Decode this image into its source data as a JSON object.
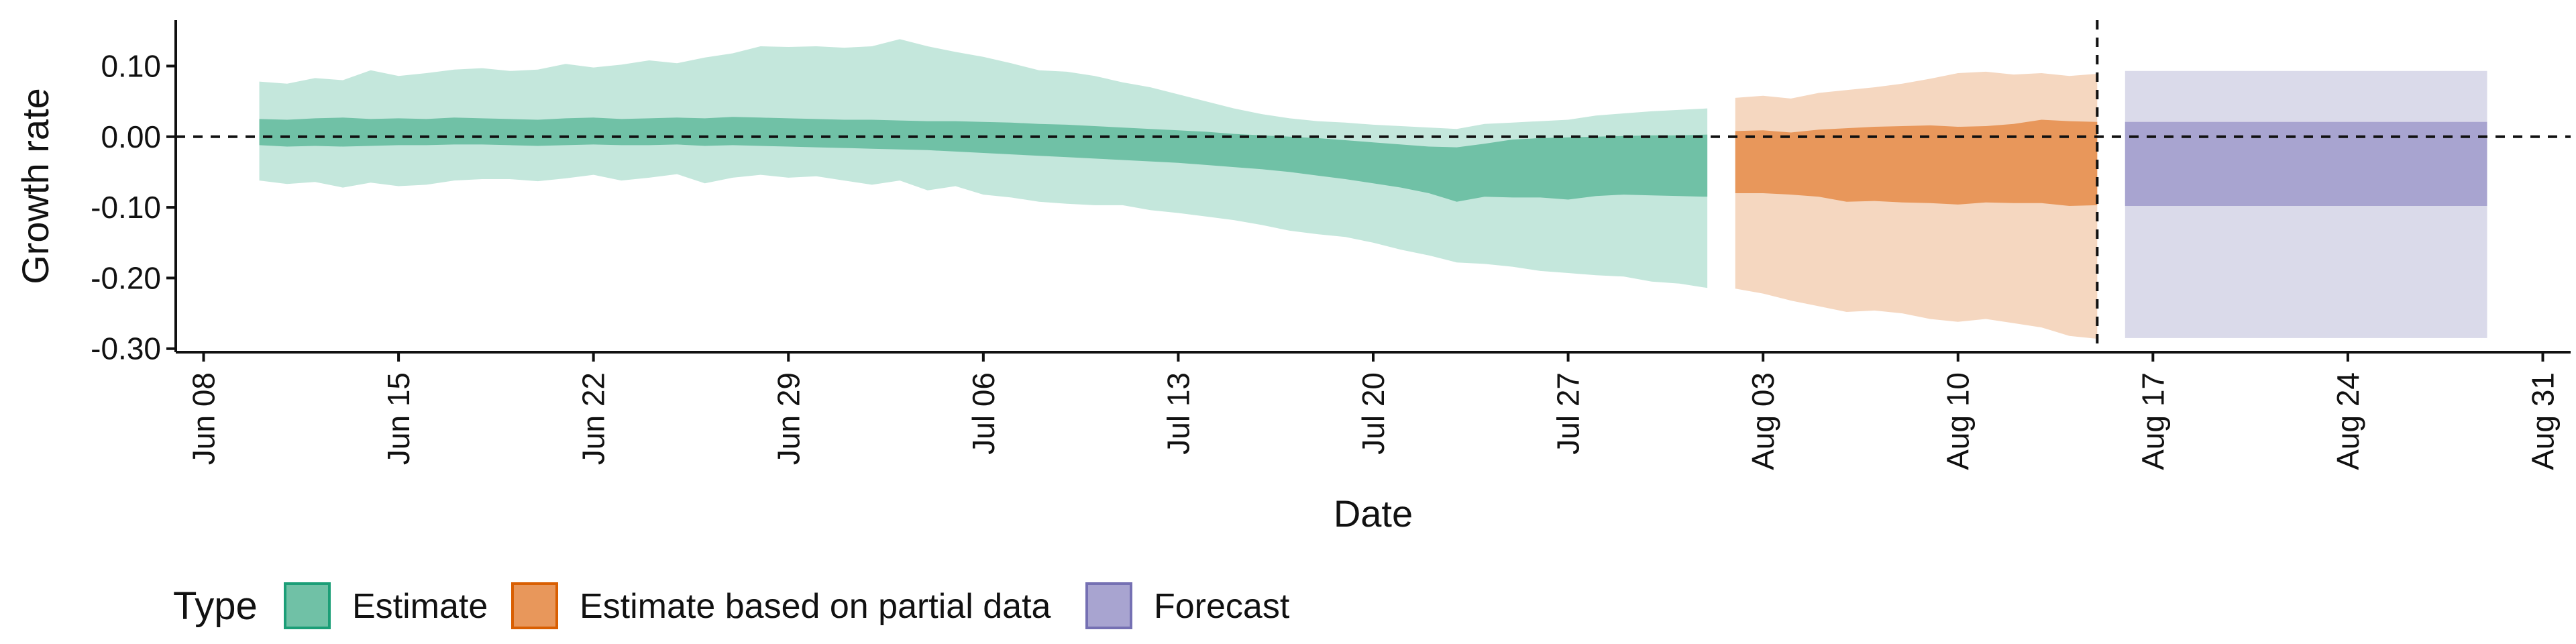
{
  "chart_data": {
    "type": "area",
    "xlabel": "Date",
    "ylabel": "Growth rate",
    "x_axis_type": "date",
    "xlim": [
      "2020-06-07",
      "2020-09-01"
    ],
    "ylim": [
      -0.305,
      0.165
    ],
    "x_ticks": [
      {
        "date": "2020-06-08",
        "label": "Jun 08"
      },
      {
        "date": "2020-06-15",
        "label": "Jun 15"
      },
      {
        "date": "2020-06-22",
        "label": "Jun 22"
      },
      {
        "date": "2020-06-29",
        "label": "Jun 29"
      },
      {
        "date": "2020-07-06",
        "label": "Jul 06"
      },
      {
        "date": "2020-07-13",
        "label": "Jul 13"
      },
      {
        "date": "2020-07-20",
        "label": "Jul 20"
      },
      {
        "date": "2020-07-27",
        "label": "Jul 27"
      },
      {
        "date": "2020-08-03",
        "label": "Aug 03"
      },
      {
        "date": "2020-08-10",
        "label": "Aug 10"
      },
      {
        "date": "2020-08-17",
        "label": "Aug 17"
      },
      {
        "date": "2020-08-24",
        "label": "Aug 24"
      },
      {
        "date": "2020-08-31",
        "label": "Aug 31"
      }
    ],
    "y_ticks": [
      {
        "value": 0.1,
        "label": "0.10"
      },
      {
        "value": 0.0,
        "label": "0.00"
      },
      {
        "value": -0.1,
        "label": "-0.10"
      },
      {
        "value": -0.2,
        "label": "-0.20"
      },
      {
        "value": -0.3,
        "label": "-0.30"
      }
    ],
    "reference_lines": {
      "horizontal_y": 0.0,
      "vertical_date": "2020-08-15",
      "style": "dashed"
    },
    "grid": false,
    "legend": {
      "title": "Type",
      "position": "bottom",
      "entries": [
        {
          "label": "Estimate",
          "fill": "#70c1a6",
          "stroke": "#1b9e77"
        },
        {
          "label": "Estimate based on partial data",
          "fill": "#e8975b",
          "stroke": "#d95f02"
        },
        {
          "label": "Forecast",
          "fill": "#a8a4d0",
          "stroke": "#7570b3"
        }
      ]
    },
    "series": [
      {
        "type": "Estimate",
        "outer_color": "#c4e7dc",
        "inner_color": "#70c1a6",
        "points": [
          {
            "date": "2020-06-10",
            "outer_lo": -0.062,
            "inner_lo": -0.012,
            "inner_hi": 0.025,
            "outer_hi": 0.078
          },
          {
            "date": "2020-06-11",
            "outer_lo": -0.067,
            "inner_lo": -0.014,
            "inner_hi": 0.024,
            "outer_hi": 0.075
          },
          {
            "date": "2020-06-12",
            "outer_lo": -0.064,
            "inner_lo": -0.013,
            "inner_hi": 0.026,
            "outer_hi": 0.083
          },
          {
            "date": "2020-06-13",
            "outer_lo": -0.072,
            "inner_lo": -0.014,
            "inner_hi": 0.027,
            "outer_hi": 0.08
          },
          {
            "date": "2020-06-14",
            "outer_lo": -0.065,
            "inner_lo": -0.013,
            "inner_hi": 0.025,
            "outer_hi": 0.094
          },
          {
            "date": "2020-06-15",
            "outer_lo": -0.07,
            "inner_lo": -0.012,
            "inner_hi": 0.026,
            "outer_hi": 0.086
          },
          {
            "date": "2020-06-16",
            "outer_lo": -0.068,
            "inner_lo": -0.012,
            "inner_hi": 0.025,
            "outer_hi": 0.09
          },
          {
            "date": "2020-06-17",
            "outer_lo": -0.062,
            "inner_lo": -0.011,
            "inner_hi": 0.027,
            "outer_hi": 0.095
          },
          {
            "date": "2020-06-18",
            "outer_lo": -0.06,
            "inner_lo": -0.011,
            "inner_hi": 0.026,
            "outer_hi": 0.097
          },
          {
            "date": "2020-06-19",
            "outer_lo": -0.06,
            "inner_lo": -0.012,
            "inner_hi": 0.025,
            "outer_hi": 0.093
          },
          {
            "date": "2020-06-20",
            "outer_lo": -0.063,
            "inner_lo": -0.013,
            "inner_hi": 0.024,
            "outer_hi": 0.095
          },
          {
            "date": "2020-06-21",
            "outer_lo": -0.059,
            "inner_lo": -0.012,
            "inner_hi": 0.026,
            "outer_hi": 0.103
          },
          {
            "date": "2020-06-22",
            "outer_lo": -0.054,
            "inner_lo": -0.011,
            "inner_hi": 0.027,
            "outer_hi": 0.098
          },
          {
            "date": "2020-06-23",
            "outer_lo": -0.062,
            "inner_lo": -0.012,
            "inner_hi": 0.025,
            "outer_hi": 0.102
          },
          {
            "date": "2020-06-24",
            "outer_lo": -0.058,
            "inner_lo": -0.012,
            "inner_hi": 0.026,
            "outer_hi": 0.108
          },
          {
            "date": "2020-06-25",
            "outer_lo": -0.053,
            "inner_lo": -0.011,
            "inner_hi": 0.027,
            "outer_hi": 0.104
          },
          {
            "date": "2020-06-26",
            "outer_lo": -0.066,
            "inner_lo": -0.013,
            "inner_hi": 0.026,
            "outer_hi": 0.112
          },
          {
            "date": "2020-06-27",
            "outer_lo": -0.058,
            "inner_lo": -0.012,
            "inner_hi": 0.028,
            "outer_hi": 0.118
          },
          {
            "date": "2020-06-28",
            "outer_lo": -0.054,
            "inner_lo": -0.013,
            "inner_hi": 0.027,
            "outer_hi": 0.128
          },
          {
            "date": "2020-06-29",
            "outer_lo": -0.058,
            "inner_lo": -0.014,
            "inner_hi": 0.026,
            "outer_hi": 0.127
          },
          {
            "date": "2020-06-30",
            "outer_lo": -0.056,
            "inner_lo": -0.015,
            "inner_hi": 0.025,
            "outer_hi": 0.128
          },
          {
            "date": "2020-07-01",
            "outer_lo": -0.062,
            "inner_lo": -0.016,
            "inner_hi": 0.024,
            "outer_hi": 0.126
          },
          {
            "date": "2020-07-02",
            "outer_lo": -0.068,
            "inner_lo": -0.017,
            "inner_hi": 0.024,
            "outer_hi": 0.128
          },
          {
            "date": "2020-07-03",
            "outer_lo": -0.062,
            "inner_lo": -0.018,
            "inner_hi": 0.023,
            "outer_hi": 0.138
          },
          {
            "date": "2020-07-04",
            "outer_lo": -0.076,
            "inner_lo": -0.019,
            "inner_hi": 0.022,
            "outer_hi": 0.128
          },
          {
            "date": "2020-07-05",
            "outer_lo": -0.07,
            "inner_lo": -0.021,
            "inner_hi": 0.022,
            "outer_hi": 0.12
          },
          {
            "date": "2020-07-06",
            "outer_lo": -0.082,
            "inner_lo": -0.023,
            "inner_hi": 0.021,
            "outer_hi": 0.113
          },
          {
            "date": "2020-07-07",
            "outer_lo": -0.086,
            "inner_lo": -0.025,
            "inner_hi": 0.02,
            "outer_hi": 0.104
          },
          {
            "date": "2020-07-08",
            "outer_lo": -0.092,
            "inner_lo": -0.027,
            "inner_hi": 0.018,
            "outer_hi": 0.094
          },
          {
            "date": "2020-07-09",
            "outer_lo": -0.095,
            "inner_lo": -0.029,
            "inner_hi": 0.017,
            "outer_hi": 0.092
          },
          {
            "date": "2020-07-10",
            "outer_lo": -0.097,
            "inner_lo": -0.031,
            "inner_hi": 0.015,
            "outer_hi": 0.086
          },
          {
            "date": "2020-07-11",
            "outer_lo": -0.097,
            "inner_lo": -0.033,
            "inner_hi": 0.013,
            "outer_hi": 0.077
          },
          {
            "date": "2020-07-12",
            "outer_lo": -0.104,
            "inner_lo": -0.035,
            "inner_hi": 0.011,
            "outer_hi": 0.07
          },
          {
            "date": "2020-07-13",
            "outer_lo": -0.108,
            "inner_lo": -0.037,
            "inner_hi": 0.009,
            "outer_hi": 0.06
          },
          {
            "date": "2020-07-14",
            "outer_lo": -0.113,
            "inner_lo": -0.04,
            "inner_hi": 0.007,
            "outer_hi": 0.05
          },
          {
            "date": "2020-07-15",
            "outer_lo": -0.118,
            "inner_lo": -0.043,
            "inner_hi": 0.004,
            "outer_hi": 0.04
          },
          {
            "date": "2020-07-16",
            "outer_lo": -0.125,
            "inner_lo": -0.046,
            "inner_hi": 0.002,
            "outer_hi": 0.032
          },
          {
            "date": "2020-07-17",
            "outer_lo": -0.133,
            "inner_lo": -0.05,
            "inner_hi": 0.0,
            "outer_hi": 0.026
          },
          {
            "date": "2020-07-18",
            "outer_lo": -0.138,
            "inner_lo": -0.055,
            "inner_hi": -0.002,
            "outer_hi": 0.022
          },
          {
            "date": "2020-07-19",
            "outer_lo": -0.142,
            "inner_lo": -0.06,
            "inner_hi": -0.005,
            "outer_hi": 0.02
          },
          {
            "date": "2020-07-20",
            "outer_lo": -0.15,
            "inner_lo": -0.066,
            "inner_hi": -0.008,
            "outer_hi": 0.017
          },
          {
            "date": "2020-07-21",
            "outer_lo": -0.16,
            "inner_lo": -0.072,
            "inner_hi": -0.011,
            "outer_hi": 0.015
          },
          {
            "date": "2020-07-22",
            "outer_lo": -0.168,
            "inner_lo": -0.08,
            "inner_hi": -0.014,
            "outer_hi": 0.013
          },
          {
            "date": "2020-07-23",
            "outer_lo": -0.178,
            "inner_lo": -0.092,
            "inner_hi": -0.015,
            "outer_hi": 0.011
          },
          {
            "date": "2020-07-24",
            "outer_lo": -0.18,
            "inner_lo": -0.085,
            "inner_hi": -0.01,
            "outer_hi": 0.018
          },
          {
            "date": "2020-07-25",
            "outer_lo": -0.184,
            "inner_lo": -0.086,
            "inner_hi": -0.004,
            "outer_hi": 0.02
          },
          {
            "date": "2020-07-26",
            "outer_lo": -0.19,
            "inner_lo": -0.086,
            "inner_hi": -0.002,
            "outer_hi": 0.022
          },
          {
            "date": "2020-07-27",
            "outer_lo": -0.193,
            "inner_lo": -0.089,
            "inner_hi": -0.001,
            "outer_hi": 0.024
          },
          {
            "date": "2020-07-28",
            "outer_lo": -0.196,
            "inner_lo": -0.084,
            "inner_hi": 0.0,
            "outer_hi": 0.03
          },
          {
            "date": "2020-07-29",
            "outer_lo": -0.198,
            "inner_lo": -0.082,
            "inner_hi": 0.001,
            "outer_hi": 0.033
          },
          {
            "date": "2020-07-30",
            "outer_lo": -0.205,
            "inner_lo": -0.083,
            "inner_hi": 0.002,
            "outer_hi": 0.036
          },
          {
            "date": "2020-07-31",
            "outer_lo": -0.208,
            "inner_lo": -0.084,
            "inner_hi": 0.002,
            "outer_hi": 0.038
          },
          {
            "date": "2020-08-01",
            "outer_lo": -0.214,
            "inner_lo": -0.085,
            "inner_hi": 0.003,
            "outer_hi": 0.04
          }
        ]
      },
      {
        "type": "Estimate based on partial data",
        "outer_color": "#f5d7c0",
        "inner_color": "#e8975b",
        "points": [
          {
            "date": "2020-08-02",
            "outer_lo": -0.215,
            "inner_lo": -0.08,
            "inner_hi": 0.008,
            "outer_hi": 0.055
          },
          {
            "date": "2020-08-03",
            "outer_lo": -0.222,
            "inner_lo": -0.08,
            "inner_hi": 0.009,
            "outer_hi": 0.058
          },
          {
            "date": "2020-08-04",
            "outer_lo": -0.232,
            "inner_lo": -0.082,
            "inner_hi": 0.006,
            "outer_hi": 0.054
          },
          {
            "date": "2020-08-05",
            "outer_lo": -0.24,
            "inner_lo": -0.085,
            "inner_hi": 0.01,
            "outer_hi": 0.062
          },
          {
            "date": "2020-08-06",
            "outer_lo": -0.248,
            "inner_lo": -0.092,
            "inner_hi": 0.012,
            "outer_hi": 0.066
          },
          {
            "date": "2020-08-07",
            "outer_lo": -0.246,
            "inner_lo": -0.091,
            "inner_hi": 0.014,
            "outer_hi": 0.07
          },
          {
            "date": "2020-08-08",
            "outer_lo": -0.25,
            "inner_lo": -0.093,
            "inner_hi": 0.015,
            "outer_hi": 0.075
          },
          {
            "date": "2020-08-09",
            "outer_lo": -0.258,
            "inner_lo": -0.094,
            "inner_hi": 0.016,
            "outer_hi": 0.082
          },
          {
            "date": "2020-08-10",
            "outer_lo": -0.262,
            "inner_lo": -0.096,
            "inner_hi": 0.014,
            "outer_hi": 0.09
          },
          {
            "date": "2020-08-11",
            "outer_lo": -0.258,
            "inner_lo": -0.093,
            "inner_hi": 0.015,
            "outer_hi": 0.092
          },
          {
            "date": "2020-08-12",
            "outer_lo": -0.264,
            "inner_lo": -0.094,
            "inner_hi": 0.018,
            "outer_hi": 0.088
          },
          {
            "date": "2020-08-13",
            "outer_lo": -0.27,
            "inner_lo": -0.094,
            "inner_hi": 0.024,
            "outer_hi": 0.09
          },
          {
            "date": "2020-08-14",
            "outer_lo": -0.282,
            "inner_lo": -0.098,
            "inner_hi": 0.022,
            "outer_hi": 0.086
          },
          {
            "date": "2020-08-15",
            "outer_lo": -0.286,
            "inner_lo": -0.097,
            "inner_hi": 0.021,
            "outer_hi": 0.089
          }
        ]
      },
      {
        "type": "Forecast",
        "outer_color": "#dadaea",
        "inner_color": "#a8a4d0",
        "points": [
          {
            "date": "2020-08-16",
            "outer_lo": -0.285,
            "inner_lo": -0.098,
            "inner_hi": 0.021,
            "outer_hi": 0.093
          },
          {
            "date": "2020-08-29",
            "outer_lo": -0.285,
            "inner_lo": -0.098,
            "inner_hi": 0.021,
            "outer_hi": 0.093
          }
        ]
      }
    ]
  }
}
